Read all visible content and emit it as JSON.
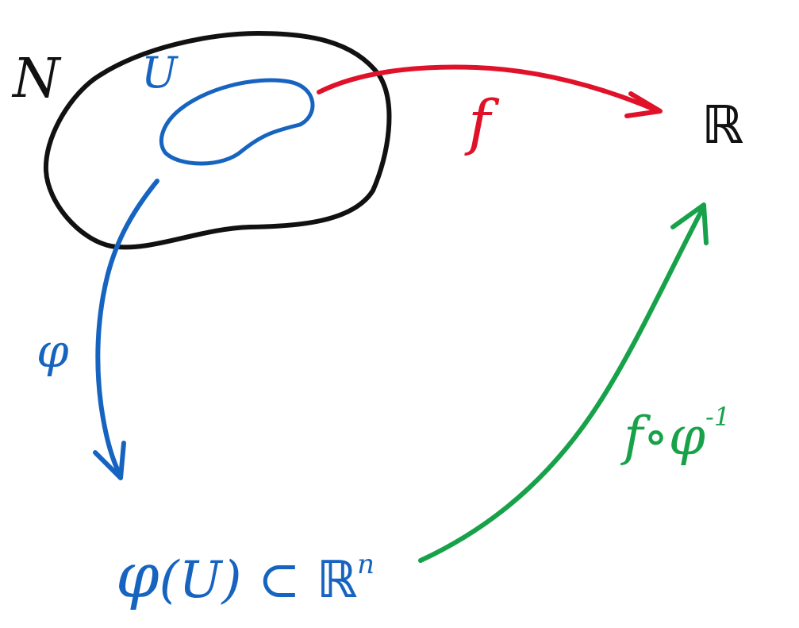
{
  "labels": {
    "manifold": "N",
    "open_set": "U",
    "reals": "ℝ",
    "f": "f",
    "chart": "φ",
    "chart_image_phi": "φ",
    "chart_image_mid": "(U) ⊂ ",
    "chart_image_R": "ℝ",
    "chart_image_exp": "n",
    "composite_base": "f∘φ",
    "composite_exp": "-1"
  },
  "colors": {
    "manifold": "#111111",
    "chart": "#1664c0",
    "map_f": "#e0122a",
    "composite": "#17a24a",
    "reals": "#111111"
  }
}
